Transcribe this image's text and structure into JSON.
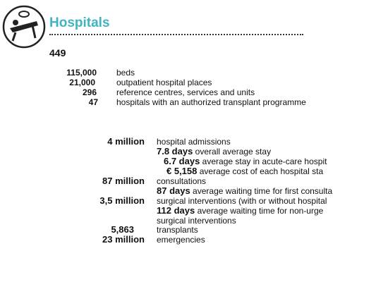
{
  "header": {
    "title": "Hospitals",
    "total": "449"
  },
  "facilities": [
    {
      "value": "115,000",
      "label": "beds"
    },
    {
      "value": "21,000",
      "label": "outpatient hospital places"
    },
    {
      "value": "296",
      "label": "reference centres, services and units"
    },
    {
      "value": "47",
      "label": "hospitals with an authorized  transplant programme"
    }
  ],
  "activity": [
    {
      "value": "4 million",
      "label": "hospital admissions"
    },
    {
      "value": "7.8 days",
      "label": "overall average stay"
    },
    {
      "value": "6.7 days",
      "label": "average stay in acute-care hospit"
    },
    {
      "value": "€ 5,158",
      "label": "average cost of each hospital sta"
    },
    {
      "value": "87 million",
      "label": "consultations"
    },
    {
      "value": "87 days",
      "label": "average waiting time for first consulta"
    },
    {
      "value": "3,5 million",
      "label": "surgical interventions (with or without hospital"
    },
    {
      "value": "112 days",
      "label": "average waiting time for non-urge"
    },
    {
      "value": "",
      "label": "surgical interventions"
    },
    {
      "value": "5,863",
      "label": "transplants"
    },
    {
      "value": "23 million",
      "label": "emergencies"
    }
  ]
}
